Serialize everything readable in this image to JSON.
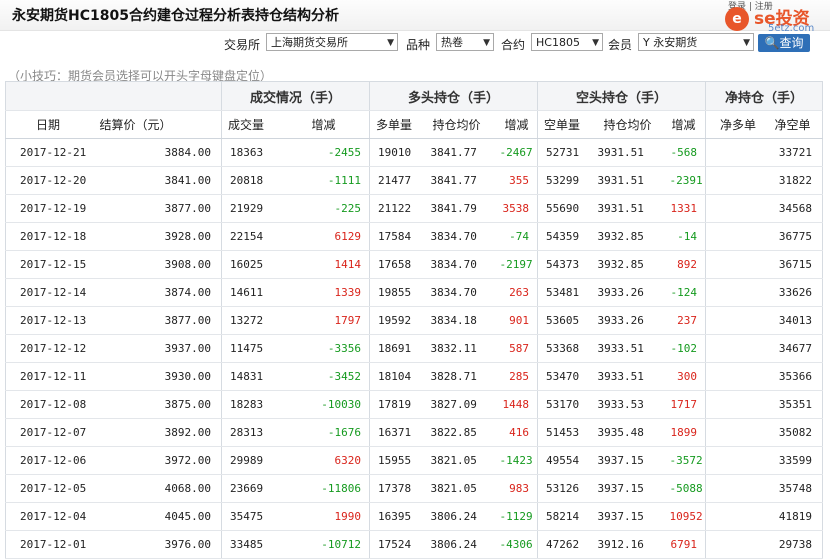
{
  "header": {
    "title": "永安期货HC1805合约建仓过程分析表持仓结构分析",
    "logo_text": "se投资",
    "logo_domain": "5etz.com",
    "cut_text": "登录 | 注册"
  },
  "filters": {
    "exchange_label": "交易所",
    "exchange_value": "上海期货交易所",
    "variety_label": "品种",
    "variety_value": "热卷",
    "contract_label": "合约",
    "contract_value": "HC1805",
    "member_label": "会员",
    "member_value": "Y 永安期货",
    "search_label": "查询"
  },
  "tip": "（小技巧：期货会员选择可以开头字母键盘定位）",
  "table": {
    "groups": [
      "成交情况（手）",
      "多头持仓（手）",
      "空头持仓（手）",
      "净持仓（手）"
    ],
    "columns": [
      "日期",
      "结算价（元）",
      "成交量",
      "增减",
      "多单量",
      "持仓均价",
      "增减",
      "空单量",
      "持仓均价",
      "增减",
      "净多单",
      "净空单"
    ],
    "rows": [
      [
        "2017-12-21",
        "3884.00",
        "18363",
        "-2455",
        "19010",
        "3841.77",
        "-2467",
        "52731",
        "3931.51",
        "-568",
        "",
        "33721"
      ],
      [
        "2017-12-20",
        "3841.00",
        "20818",
        "-1111",
        "21477",
        "3841.77",
        "355",
        "53299",
        "3931.51",
        "-2391",
        "",
        "31822"
      ],
      [
        "2017-12-19",
        "3877.00",
        "21929",
        "-225",
        "21122",
        "3841.79",
        "3538",
        "55690",
        "3931.51",
        "1331",
        "",
        "34568"
      ],
      [
        "2017-12-18",
        "3928.00",
        "22154",
        "6129",
        "17584",
        "3834.70",
        "-74",
        "54359",
        "3932.85",
        "-14",
        "",
        "36775"
      ],
      [
        "2017-12-15",
        "3908.00",
        "16025",
        "1414",
        "17658",
        "3834.70",
        "-2197",
        "54373",
        "3932.85",
        "892",
        "",
        "36715"
      ],
      [
        "2017-12-14",
        "3874.00",
        "14611",
        "1339",
        "19855",
        "3834.70",
        "263",
        "53481",
        "3933.26",
        "-124",
        "",
        "33626"
      ],
      [
        "2017-12-13",
        "3877.00",
        "13272",
        "1797",
        "19592",
        "3834.18",
        "901",
        "53605",
        "3933.26",
        "237",
        "",
        "34013"
      ],
      [
        "2017-12-12",
        "3937.00",
        "11475",
        "-3356",
        "18691",
        "3832.11",
        "587",
        "53368",
        "3933.51",
        "-102",
        "",
        "34677"
      ],
      [
        "2017-12-11",
        "3930.00",
        "14831",
        "-3452",
        "18104",
        "3828.71",
        "285",
        "53470",
        "3933.51",
        "300",
        "",
        "35366"
      ],
      [
        "2017-12-08",
        "3875.00",
        "18283",
        "-10030",
        "17819",
        "3827.09",
        "1448",
        "53170",
        "3933.53",
        "1717",
        "",
        "35351"
      ],
      [
        "2017-12-07",
        "3892.00",
        "28313",
        "-1676",
        "16371",
        "3822.85",
        "416",
        "51453",
        "3935.48",
        "1899",
        "",
        "35082"
      ],
      [
        "2017-12-06",
        "3972.00",
        "29989",
        "6320",
        "15955",
        "3821.05",
        "-1423",
        "49554",
        "3937.15",
        "-3572",
        "",
        "33599"
      ],
      [
        "2017-12-05",
        "4068.00",
        "23669",
        "-11806",
        "17378",
        "3821.05",
        "983",
        "53126",
        "3937.15",
        "-5088",
        "",
        "35748"
      ],
      [
        "2017-12-04",
        "4045.00",
        "35475",
        "1990",
        "16395",
        "3806.24",
        "-1129",
        "58214",
        "3937.15",
        "10952",
        "",
        "41819"
      ],
      [
        "2017-12-01",
        "3976.00",
        "33485",
        "-10712",
        "17524",
        "3806.24",
        "-4306",
        "47262",
        "3912.16",
        "6791",
        "",
        "29738"
      ]
    ]
  }
}
